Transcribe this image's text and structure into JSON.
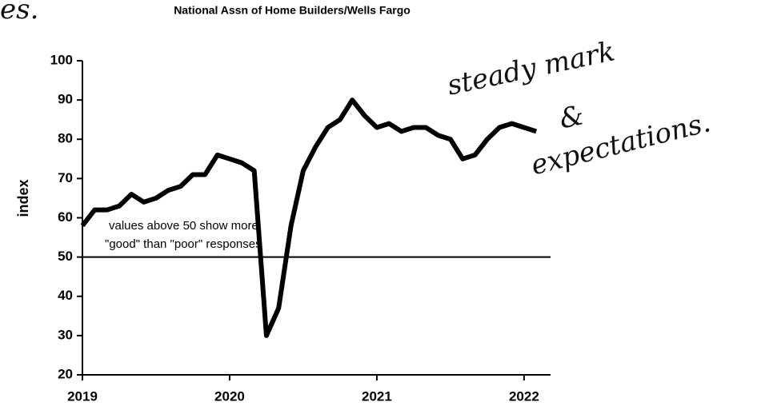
{
  "chart_data": {
    "type": "line",
    "subtitle": "National Assn of Home Builders/Wells Fargo",
    "ylabel": "index",
    "annotations": [
      "values above 50 show more",
      "\"good\" than \"poor\" responses"
    ],
    "notes": [
      "es.",
      "steady mark",
      "&",
      "expectations."
    ],
    "x": [
      2019,
      2019.083,
      2019.167,
      2019.25,
      2019.333,
      2019.417,
      2019.5,
      2019.583,
      2019.667,
      2019.75,
      2019.833,
      2019.917,
      2020,
      2020.083,
      2020.167,
      2020.25,
      2020.333,
      2020.417,
      2020.5,
      2020.583,
      2020.667,
      2020.75,
      2020.833,
      2020.917,
      2021,
      2021.083,
      2021.167,
      2021.25,
      2021.333,
      2021.417,
      2021.5,
      2021.583,
      2021.667,
      2021.75,
      2021.833,
      2021.917,
      2022,
      2022.083
    ],
    "series": [
      {
        "color": "#000000",
        "values": [
          58,
          62,
          62,
          63,
          66,
          64,
          65,
          67,
          68,
          71,
          71,
          76,
          75,
          74,
          72,
          30,
          37,
          58,
          72,
          78,
          83,
          85,
          90,
          86,
          83,
          84,
          82,
          83,
          83,
          81,
          80,
          75,
          76,
          80,
          83,
          84,
          83,
          82
        ]
      }
    ],
    "hline": 50,
    "xlim": [
      2019,
      2022.18
    ],
    "xticks": [
      2019,
      2020,
      2021,
      2022
    ],
    "ylim": [
      20,
      100
    ],
    "yticks": [
      20,
      30,
      40,
      50,
      60,
      70,
      80,
      90,
      100
    ],
    "grid": false
  }
}
